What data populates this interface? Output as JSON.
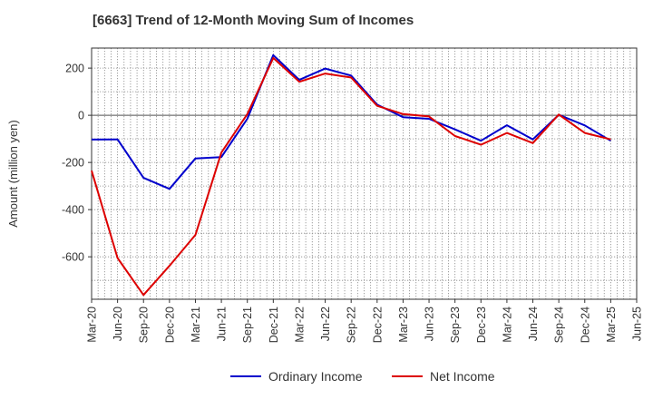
{
  "chart_data": {
    "type": "line",
    "title": "[6663]  Trend of 12-Month Moving Sum of Incomes",
    "xlabel": "",
    "ylabel": "Amount (million yen)",
    "ylim": [
      -780,
      285
    ],
    "yticks": [
      200,
      0,
      -200,
      -400,
      -600
    ],
    "ytick_labels": [
      "200",
      "0",
      "-200",
      "-400",
      "-600"
    ],
    "grid": true,
    "legend_position": "bottom-center",
    "x": [
      "Mar-20",
      "Jun-20",
      "Sep-20",
      "Dec-20",
      "Mar-21",
      "Jun-21",
      "Sep-21",
      "Dec-21",
      "Mar-22",
      "Jun-22",
      "Sep-22",
      "Dec-22",
      "Mar-23",
      "Jun-23",
      "Sep-23",
      "Dec-23",
      "Mar-24",
      "Jun-24",
      "Sep-24",
      "Dec-24",
      "Mar-25",
      "Jun-25"
    ],
    "series": [
      {
        "name": "Ordinary Income",
        "color": "#0000cc",
        "values": [
          -103,
          -102,
          -265,
          -312,
          -183,
          -177,
          -15,
          255,
          150,
          198,
          168,
          45,
          -8,
          -15,
          -60,
          -108,
          -42,
          -102,
          2,
          -43,
          -108,
          null
        ]
      },
      {
        "name": "Net Income",
        "color": "#dd0000",
        "values": [
          -235,
          -605,
          -762,
          -638,
          -507,
          -158,
          5,
          243,
          142,
          177,
          160,
          40,
          5,
          -5,
          -88,
          -125,
          -75,
          -118,
          3,
          -75,
          -102,
          null
        ]
      }
    ]
  }
}
